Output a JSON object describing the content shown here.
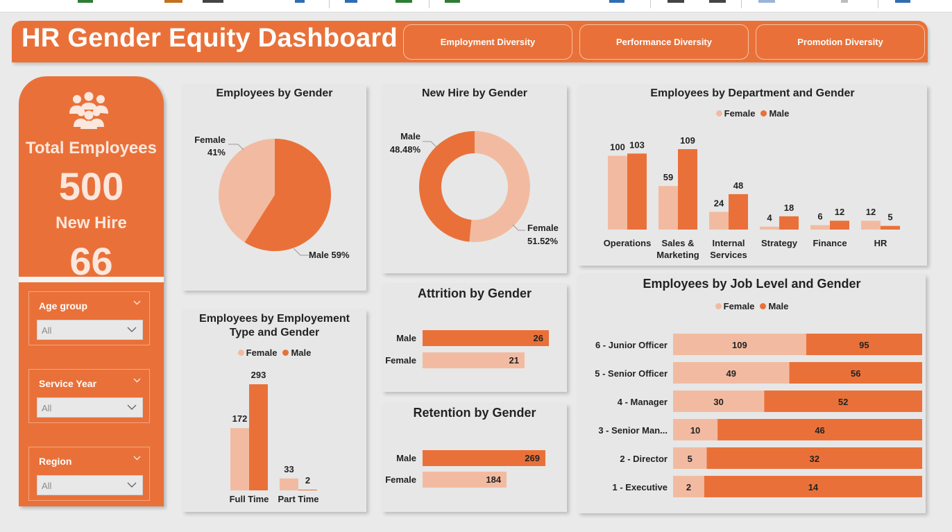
{
  "colors": {
    "male": "#e97139",
    "female": "#f2bba1",
    "accent": "#e97139"
  },
  "header": {
    "title": "HR Gender Equity Dashboard",
    "nav": [
      "Employment Diversity",
      "Performance Diversity",
      "Promotion Diversity"
    ]
  },
  "sidebar": {
    "icon": "people-group-icon",
    "total_label": "Total Employees",
    "total_value": "500",
    "newhire_label": "New Hire",
    "newhire_value": "66",
    "slicers": [
      {
        "label": "Age group",
        "value": "All"
      },
      {
        "label": "Service Year",
        "value": "All"
      },
      {
        "label": "Region",
        "value": "All"
      }
    ]
  },
  "legend": {
    "female": "Female",
    "male": "Male"
  },
  "employees_by_gender": {
    "title": "Employees by Gender",
    "female_name": "Female",
    "female_pct": "41%",
    "male_label": "Male 59%",
    "female_share": 0.41
  },
  "new_hire_by_gender": {
    "title": "New Hire by Gender",
    "male_name": "Male",
    "male_pct": "48.48%",
    "female_name": "Female",
    "female_pct": "51.52%",
    "male_share": 0.4848
  },
  "employment_type": {
    "title_line1": "Employees by Employement",
    "title_line2": "Type and Gender",
    "categories": [
      "Full Time",
      "Part Time"
    ],
    "female": [
      172,
      33
    ],
    "male": [
      293,
      2
    ]
  },
  "attrition": {
    "title": "Attrition by Gender",
    "rows": [
      {
        "name": "Male",
        "value": 26
      },
      {
        "name": "Female",
        "value": 21
      }
    ]
  },
  "retention": {
    "title": "Retention by Gender",
    "rows": [
      {
        "name": "Male",
        "value": 269
      },
      {
        "name": "Female",
        "value": 184
      }
    ]
  },
  "department": {
    "title": "Employees by Department and Gender",
    "categories": [
      [
        "Operations"
      ],
      [
        "Sales &",
        "Marketing"
      ],
      [
        "Internal",
        "Services"
      ],
      [
        "Strategy"
      ],
      [
        "Finance"
      ],
      [
        "HR"
      ]
    ],
    "female": [
      100,
      59,
      24,
      4,
      6,
      12
    ],
    "male": [
      103,
      109,
      48,
      18,
      12,
      5
    ]
  },
  "job_level": {
    "title": "Employees by Job Level and Gender",
    "levels": [
      "6 - Junior Officer",
      "5 - Senior Officer",
      "4 - Manager",
      "3 - Senior Man...",
      "2 - Director",
      "1 - Executive"
    ],
    "female": [
      109,
      49,
      30,
      10,
      5,
      2
    ],
    "male": [
      95,
      56,
      52,
      46,
      32,
      14
    ]
  }
}
